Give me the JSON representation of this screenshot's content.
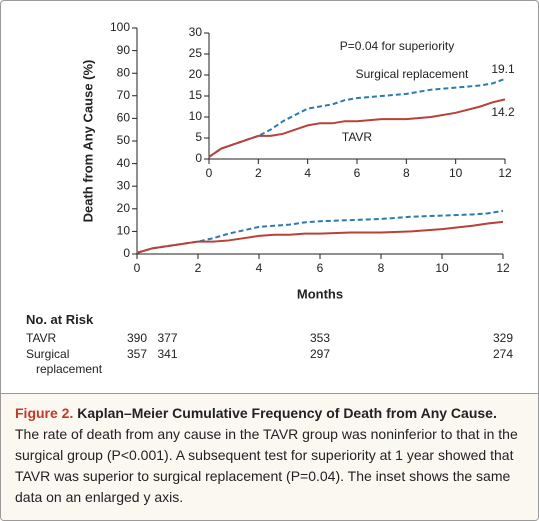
{
  "chart_data": [
    {
      "type": "line",
      "y_label": "Death from Any Cause (%)",
      "x_label": "Months",
      "x": [
        0,
        0.5,
        1,
        1.5,
        2,
        2.5,
        3,
        3.5,
        4,
        4.5,
        5,
        5.5,
        6,
        7,
        8,
        9,
        10,
        11,
        11.5,
        12
      ],
      "series": [
        {
          "color": "#2b7bb0",
          "line_style": "dashed",
          "values": [
            0.5,
            2.5,
            3.5,
            4.5,
            5.5,
            7,
            9,
            10.5,
            12,
            12.5,
            13,
            14,
            14.5,
            15,
            15.5,
            16.5,
            17,
            17.5,
            18,
            19.1
          ]
        },
        {
          "color": "#b8413a",
          "line_style": "solid",
          "values": [
            0.5,
            2.5,
            3.5,
            4.5,
            5.5,
            5.5,
            6,
            7,
            8,
            8.5,
            8.5,
            9,
            9,
            9.5,
            9.5,
            10,
            11,
            12.5,
            13.5,
            14.2
          ]
        }
      ],
      "xlim": [
        0,
        12
      ],
      "xticks": [
        0,
        2,
        4,
        6,
        8,
        10,
        12
      ],
      "ylim": [
        0,
        100
      ],
      "yticks": [
        0,
        10,
        20,
        30,
        40,
        50,
        60,
        70,
        80,
        90,
        100
      ],
      "at_risk": {
        "title": "No. at Risk",
        "x": [
          0,
          1,
          6,
          12
        ],
        "rows": [
          {
            "label": "TAVR",
            "values": [
              390,
              377,
              353,
              329
            ]
          },
          {
            "label": "Surgical replacement",
            "values": [
              357,
              341,
              297,
              274
            ]
          }
        ]
      }
    },
    {
      "type": "line",
      "annotation": "P=0.04 for superiority",
      "x": [
        0,
        0.5,
        1,
        1.5,
        2,
        2.5,
        3,
        3.5,
        4,
        4.5,
        5,
        5.5,
        6,
        7,
        8,
        9,
        10,
        11,
        11.5,
        12
      ],
      "series": [
        {
          "name": "Surgical replacement",
          "color": "#2b7bb0",
          "line_style": "dashed",
          "values": [
            0.5,
            2.5,
            3.5,
            4.5,
            5.5,
            7,
            9,
            10.5,
            12,
            12.5,
            13,
            14,
            14.5,
            15,
            15.5,
            16.5,
            17,
            17.5,
            18,
            19.1
          ]
        },
        {
          "name": "TAVR",
          "color": "#b8413a",
          "line_style": "solid",
          "values": [
            0.5,
            2.5,
            3.5,
            4.5,
            5.5,
            5.5,
            6,
            7,
            8,
            8.5,
            8.5,
            9,
            9,
            9.5,
            9.5,
            10,
            11,
            12.5,
            13.5,
            14.2
          ]
        }
      ],
      "xlim": [
        0,
        12
      ],
      "xticks": [
        0,
        2,
        4,
        6,
        8,
        10,
        12
      ],
      "ylim": [
        0,
        30
      ],
      "yticks": [
        0,
        5,
        10,
        15,
        20,
        25,
        30
      ]
    }
  ],
  "caption": {
    "label": "Figure 2.",
    "title": "Kaplan–Meier Cumulative Frequency of Death from Any Cause.",
    "body": "The rate of death from any cause in the TAVR group was noninferior to that in the surgical group (P<0.001). A subsequent test for superiority at 1 year showed that TAVR was superior to surgical replacement (P=0.04). The inset shows the same data on an enlarged y axis."
  }
}
